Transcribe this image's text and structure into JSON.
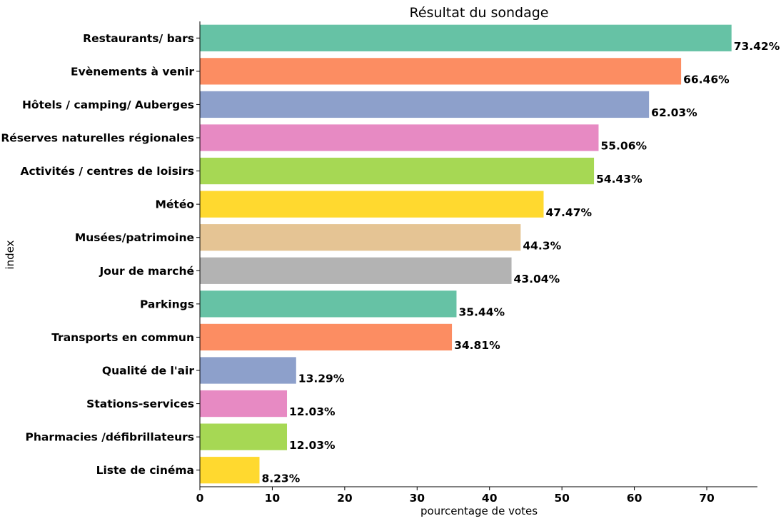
{
  "chart_data": {
    "type": "bar",
    "orientation": "horizontal",
    "title": "Résultat du sondage",
    "xlabel": "pourcentage de votes",
    "ylabel": "index",
    "xlim": [
      0,
      77
    ],
    "xticks": [
      0,
      10,
      20,
      30,
      40,
      50,
      60,
      70
    ],
    "grid": false,
    "categories": [
      "Restaurants/ bars",
      "Evènements à venir",
      "Hôtels / camping/ Auberges",
      "Réserves naturelles régionales",
      "Activités / centres de loisirs",
      "Météo",
      "Musées/patrimoine",
      "Jour de marché",
      "Parkings",
      "Transports en commun",
      "Qualité de l'air",
      "Stations-services",
      "Pharmacies /défibrillateurs",
      "Liste de cinéma"
    ],
    "values": [
      73.42,
      66.46,
      62.03,
      55.06,
      54.43,
      47.47,
      44.3,
      43.04,
      35.44,
      34.81,
      13.29,
      12.03,
      12.03,
      8.23
    ],
    "value_labels": [
      "73.42%",
      "66.46%",
      "62.03%",
      "55.06%",
      "54.43%",
      "47.47%",
      "44.3%",
      "43.04%",
      "35.44%",
      "34.81%",
      "13.29%",
      "12.03%",
      "12.03%",
      "8.23%"
    ],
    "colors": [
      "#66c2a5",
      "#fc8d62",
      "#8da0cb",
      "#e78ac3",
      "#a6d854",
      "#ffd92f",
      "#e5c494",
      "#b3b3b3"
    ]
  }
}
